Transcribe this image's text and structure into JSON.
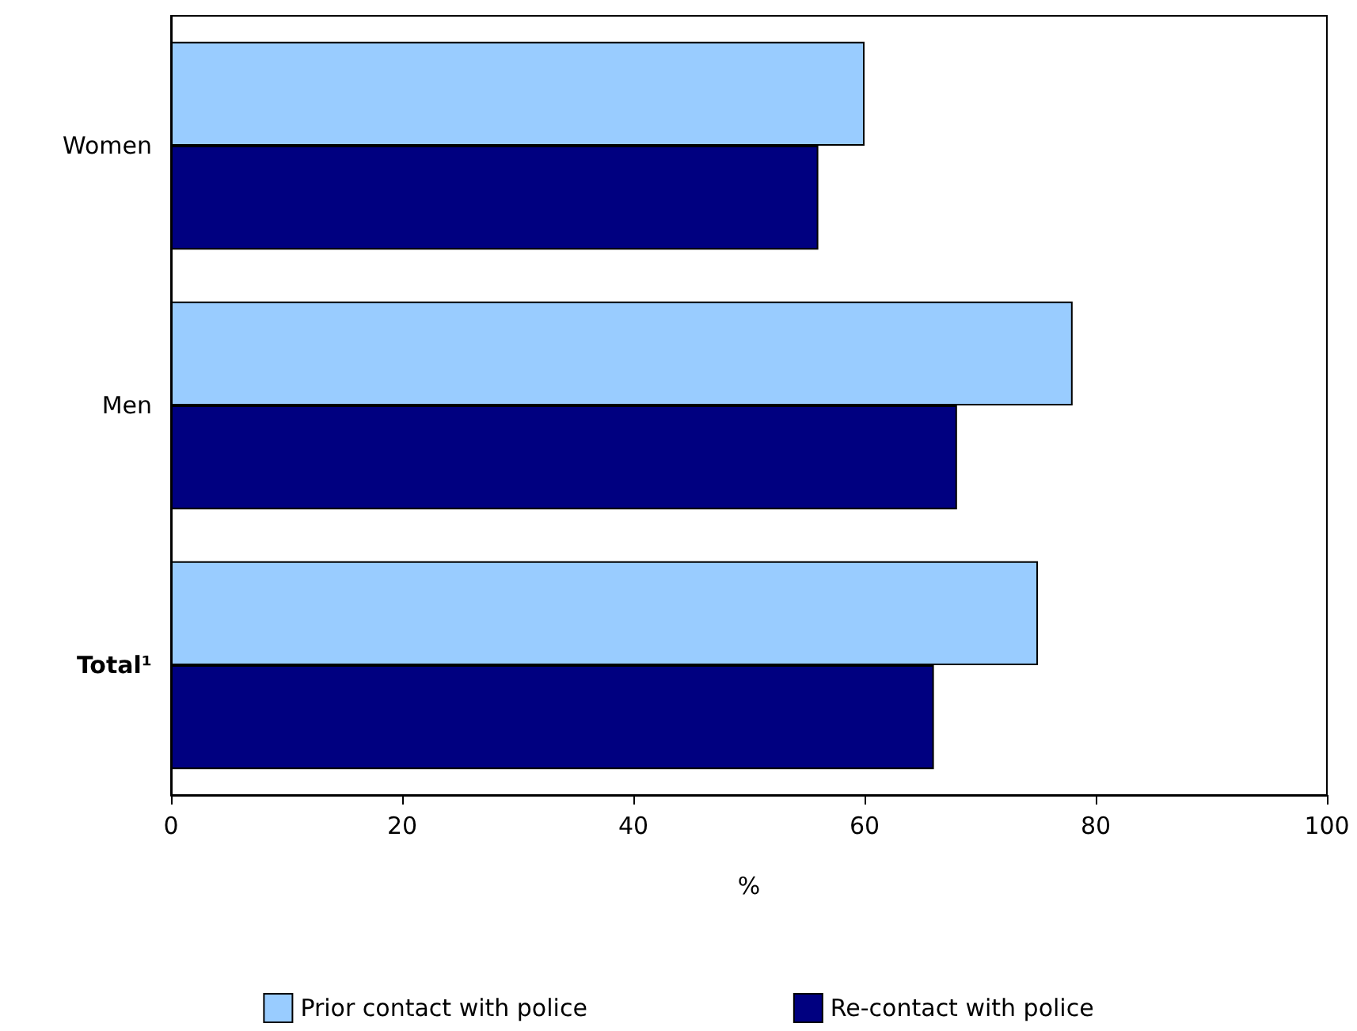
{
  "chart_data": {
    "type": "bar",
    "orientation": "horizontal",
    "categories": [
      "Women",
      "Men",
      "Total¹"
    ],
    "series": [
      {
        "name": "Prior contact with police",
        "color": "#99ccff",
        "values": [
          60,
          78,
          75
        ]
      },
      {
        "name": "Re-contact with police",
        "color": "#000080",
        "values": [
          56,
          68,
          66
        ]
      }
    ],
    "xlim": [
      0,
      100
    ],
    "xticks": [
      0,
      20,
      40,
      60,
      80,
      100
    ],
    "xlabel": "%",
    "grid": false,
    "legend": "bottom"
  }
}
